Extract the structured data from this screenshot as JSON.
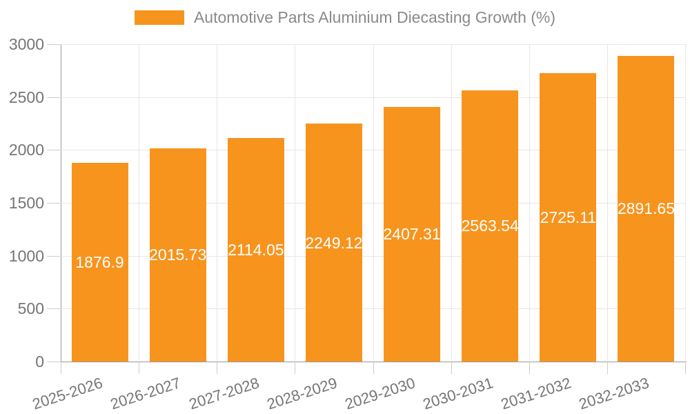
{
  "legend": {
    "items": [
      {
        "label": "Automotive Parts Aluminium Diecasting Growth (%)",
        "color": "#f7941e"
      }
    ]
  },
  "chart_data": {
    "type": "bar",
    "title": "Automotive Parts Aluminium Diecasting Growth (%)",
    "categories": [
      "2025-2026",
      "2026-2027",
      "2027-2028",
      "2028-2029",
      "2029-2030",
      "2030-2031",
      "2031-2032",
      "2032-2033"
    ],
    "series": [
      {
        "name": "Automotive Parts Aluminium Diecasting Growth (%)",
        "values": [
          1876.9,
          2015.73,
          2114.05,
          2249.12,
          2407.31,
          2563.54,
          2725.11,
          2891.65
        ],
        "value_labels": [
          "1876.9",
          "2015.73",
          "2114.05",
          "2249.12",
          "2407.31",
          "2563.54",
          "2725.11",
          "2891.65"
        ],
        "color": "#f7941e"
      }
    ],
    "xlabel": "",
    "ylabel": "",
    "ylim": [
      0,
      3000
    ],
    "yticks": [
      0,
      500,
      1000,
      1500,
      2000,
      2500,
      3000
    ],
    "grid": true,
    "legend_position": "top-center",
    "value_label_position": "inside-middle",
    "x_label_rotation_deg": -18
  },
  "colors": {
    "bar": "#f7941e",
    "axis_line": "#999999",
    "grid_line": "#e6e6e6",
    "tick": "#cccccc",
    "axis_label": "#757575",
    "legend_text": "#8a8a8a",
    "value_label": "#ffffff",
    "background": "#ffffff"
  }
}
